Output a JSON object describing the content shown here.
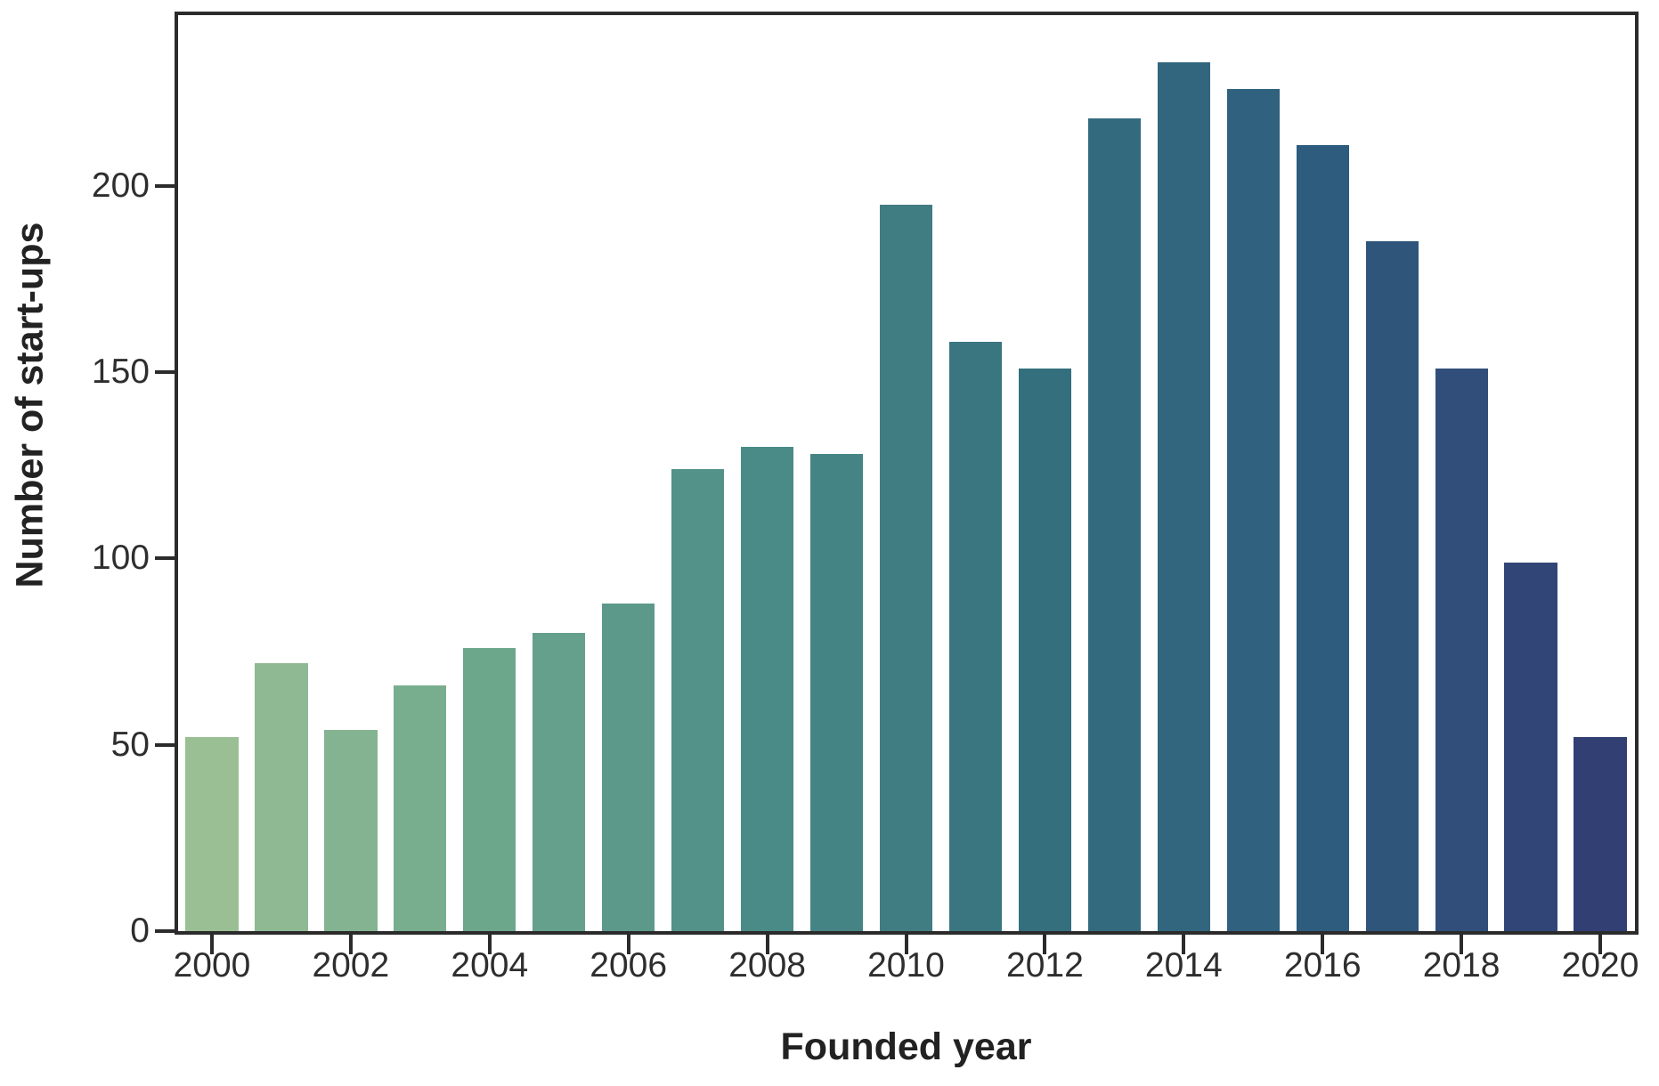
{
  "chart_data": {
    "type": "bar",
    "title": "",
    "xlabel": "Founded year",
    "ylabel": "Number of start-ups",
    "categories": [
      2000,
      2001,
      2002,
      2003,
      2004,
      2005,
      2006,
      2007,
      2008,
      2009,
      2010,
      2011,
      2012,
      2013,
      2014,
      2015,
      2016,
      2017,
      2018,
      2019,
      2020
    ],
    "values": [
      52,
      72,
      54,
      66,
      76,
      80,
      88,
      124,
      130,
      128,
      195,
      158,
      151,
      218,
      233,
      226,
      211,
      185,
      151,
      99,
      52
    ],
    "bar_colors": [
      "#9bbf94",
      "#8fb992",
      "#83b390",
      "#78ad8e",
      "#6ca78c",
      "#64a08b",
      "#5c998a",
      "#539288",
      "#4b8b87",
      "#458485",
      "#407d83",
      "#3a7680",
      "#346f7e",
      "#336a7e",
      "#31667e",
      "#30617e",
      "#2e5c7e",
      "#2f557b",
      "#304e79",
      "#314676",
      "#323f73"
    ],
    "x_tick_labels": [
      "2000",
      "2002",
      "2004",
      "2006",
      "2008",
      "2010",
      "2012",
      "2014",
      "2016",
      "2018",
      "2020"
    ],
    "y_ticks": [
      0,
      50,
      100,
      150,
      200
    ],
    "ylim": [
      0,
      246
    ],
    "grid": false,
    "legend": "none",
    "frame_color": "#2b2b2b",
    "background_color": "#ffffff",
    "text_color": "#2e2e2e"
  }
}
